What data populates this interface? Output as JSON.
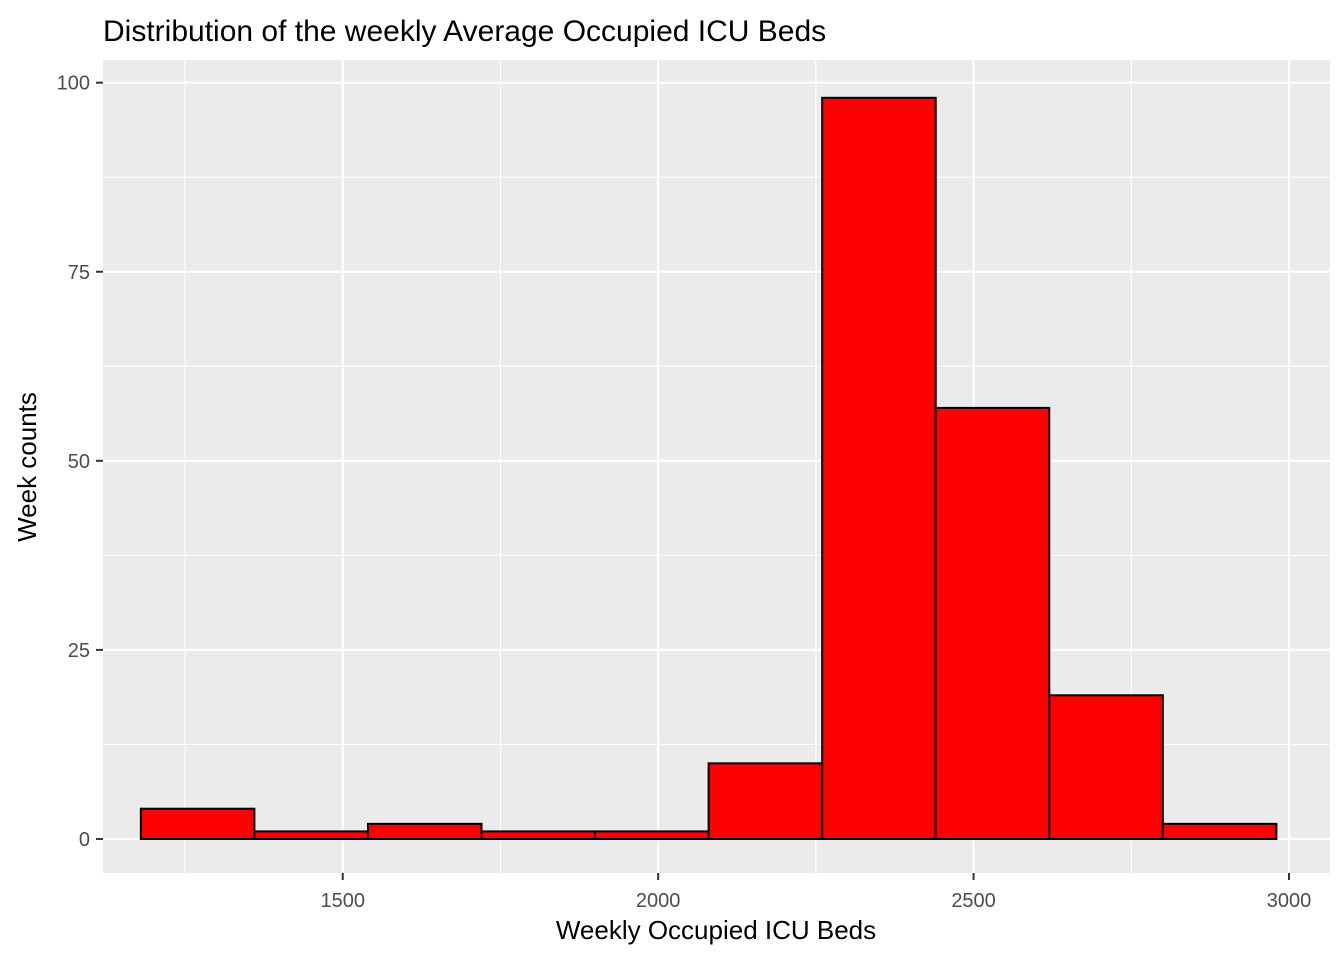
{
  "chart_data": {
    "type": "bar",
    "title": "Distribution of the weekly Average Occupied ICU Beds",
    "xlabel": "Weekly Occupied ICU Beds",
    "ylabel": "Week counts",
    "xlim": [
      1120,
      3065
    ],
    "ylim": [
      -4.5,
      103
    ],
    "x_ticks": [
      1500,
      2000,
      2500,
      3000
    ],
    "y_ticks": [
      0,
      25,
      50,
      75,
      100
    ],
    "x_minor_ticks": [
      1250,
      1750,
      2250,
      2750
    ],
    "y_minor_ticks": [
      12.5,
      37.5,
      62.5,
      87.5
    ],
    "grid": true,
    "bin_edges": [
      1180,
      1360,
      1540,
      1720,
      1900,
      2080,
      2260,
      2440,
      2620,
      2800,
      2980
    ],
    "counts": [
      4,
      1,
      2,
      1,
      1,
      10,
      98,
      57,
      19,
      2
    ],
    "colors": {
      "panel": "#ebebeb",
      "grid": "#ffffff",
      "bar_fill": "#ff0000",
      "bar_stroke": "#000000"
    }
  }
}
